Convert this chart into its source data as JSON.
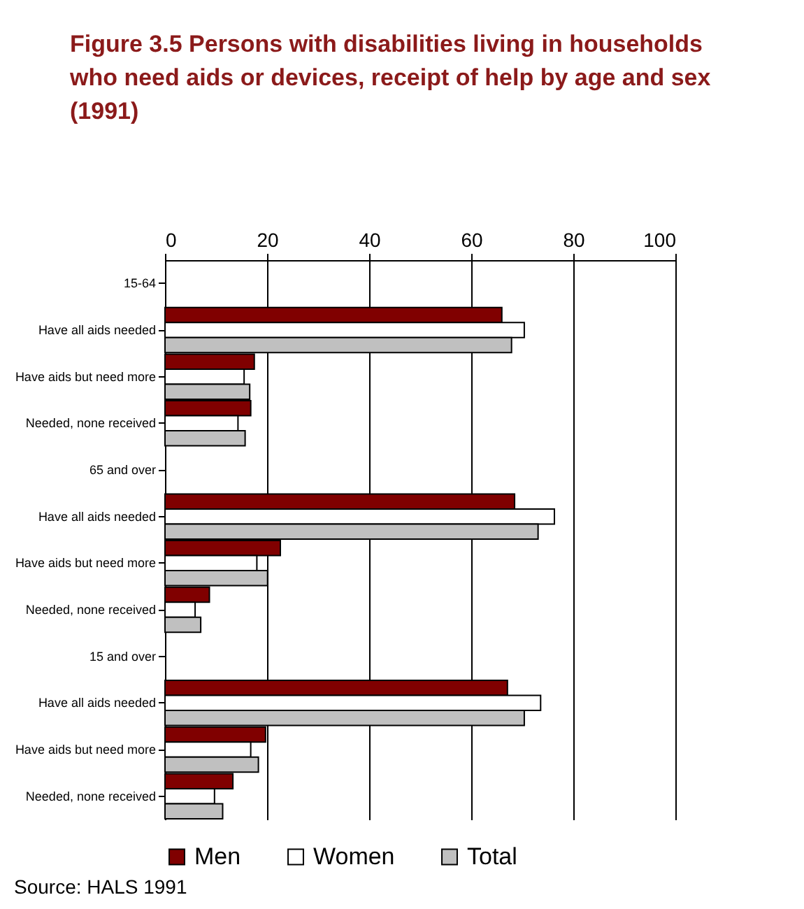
{
  "chart_data": {
    "type": "bar",
    "orientation": "horizontal",
    "title": "Figure 3.5  Persons with disabilities living in households who need aids or devices, receipt of help by age and sex (1991)",
    "categories": [
      "15-64",
      "Have all aids needed",
      "Have aids but need more",
      "Needed, none received",
      "65 and over",
      "Have all aids needed",
      "Have aids but need more",
      "Needed, none received",
      "15 and over",
      "Have all aids needed",
      "Have aids but need more",
      "Needed, none received"
    ],
    "series": [
      {
        "name": "Men",
        "color": "#800000",
        "values": [
          null,
          66.0,
          17.5,
          16.8,
          null,
          68.5,
          22.6,
          8.7,
          null,
          67.1,
          19.7,
          13.3
        ]
      },
      {
        "name": "Women",
        "color": "#ffffff",
        "values": [
          null,
          70.4,
          15.5,
          14.3,
          null,
          76.3,
          18.0,
          5.9,
          null,
          73.6,
          16.8,
          9.7
        ]
      },
      {
        "name": "Total",
        "color": "#c0c0c0",
        "values": [
          null,
          67.9,
          16.6,
          15.7,
          null,
          73.1,
          20.1,
          7.0,
          null,
          70.4,
          18.3,
          11.3
        ]
      }
    ],
    "xlim": [
      0,
      100
    ],
    "xticks": [
      0,
      20,
      40,
      60,
      80,
      100
    ],
    "grid": "x",
    "legend": "bottom",
    "annotations": [
      "Source: HALS 1991"
    ]
  }
}
